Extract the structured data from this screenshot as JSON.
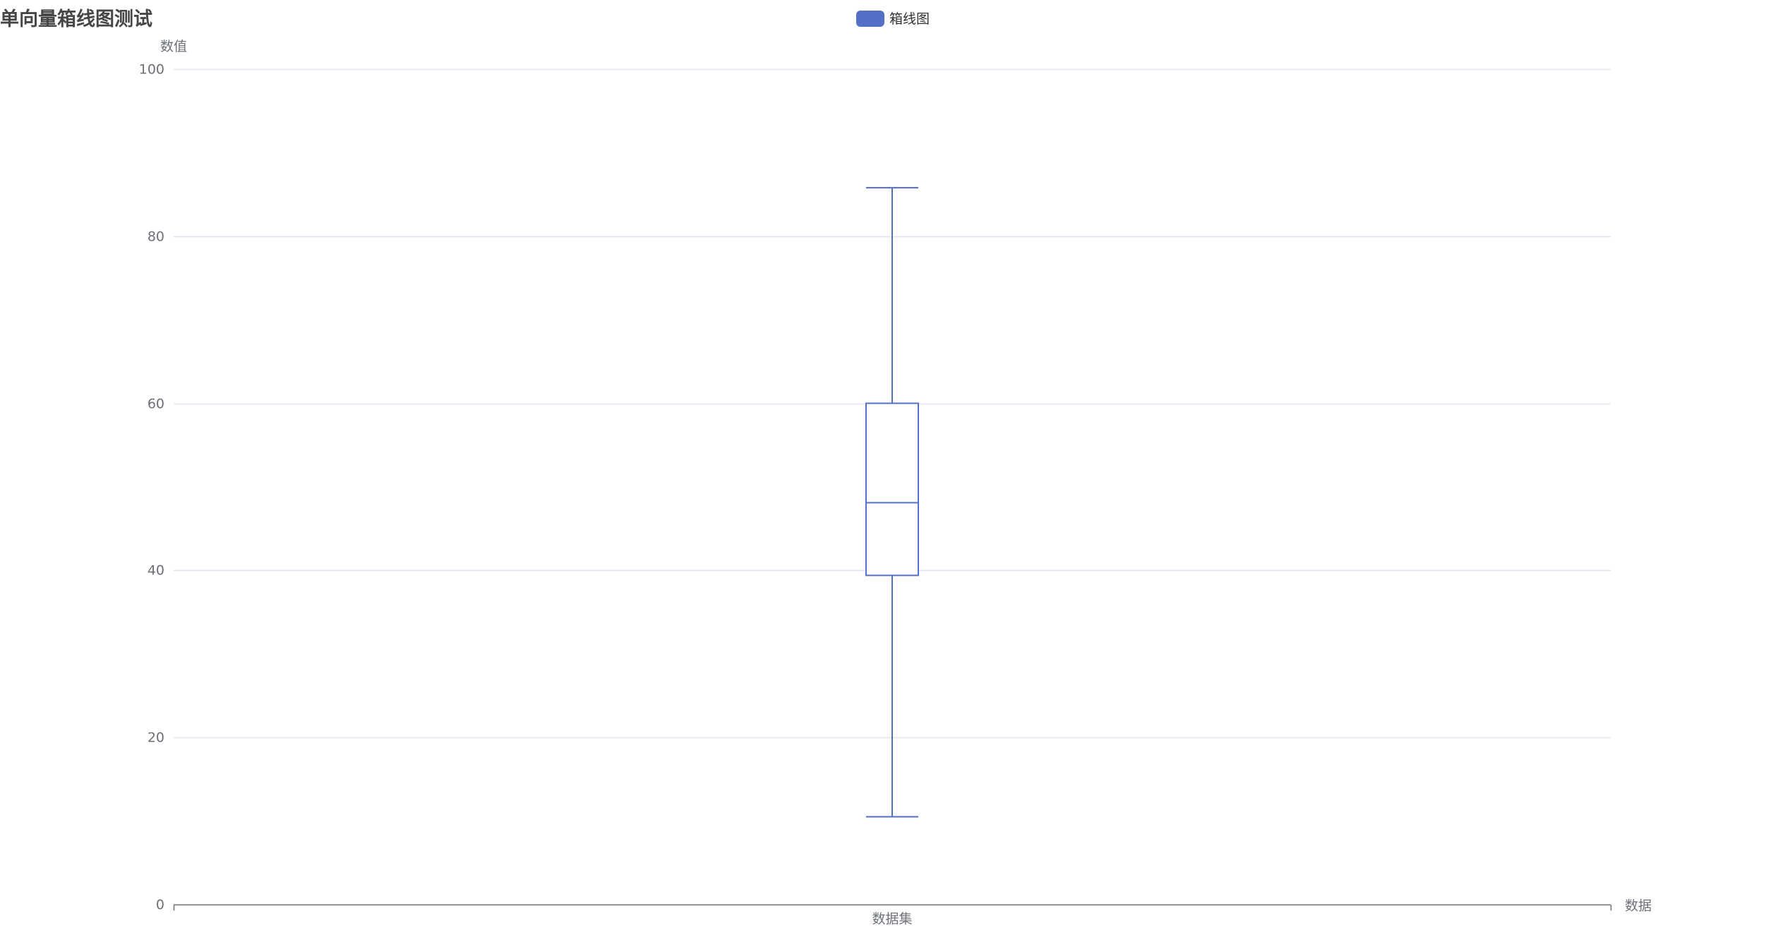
{
  "chart_data": {
    "type": "boxplot",
    "title": "单向量箱线图测试",
    "legend": {
      "position": "top-center",
      "entries": [
        "箱线图"
      ]
    },
    "xlabel": "数据",
    "ylabel": "数值",
    "categories": [
      "数据集"
    ],
    "ylim": [
      0,
      100
    ],
    "yticks": [
      0,
      20,
      40,
      60,
      80,
      100
    ],
    "grid": true,
    "series": [
      {
        "name": "箱线图",
        "color": "#5470c6",
        "boxes": [
          {
            "category": "数据集",
            "min": 10.5,
            "q1": 39.4,
            "median": 48.1,
            "q3": 60.0,
            "max": 85.8
          }
        ]
      }
    ]
  },
  "colors": {
    "series": "#5470c6",
    "grid": "#e0e6f1",
    "axis": "#6e7079",
    "title": "#464646"
  }
}
